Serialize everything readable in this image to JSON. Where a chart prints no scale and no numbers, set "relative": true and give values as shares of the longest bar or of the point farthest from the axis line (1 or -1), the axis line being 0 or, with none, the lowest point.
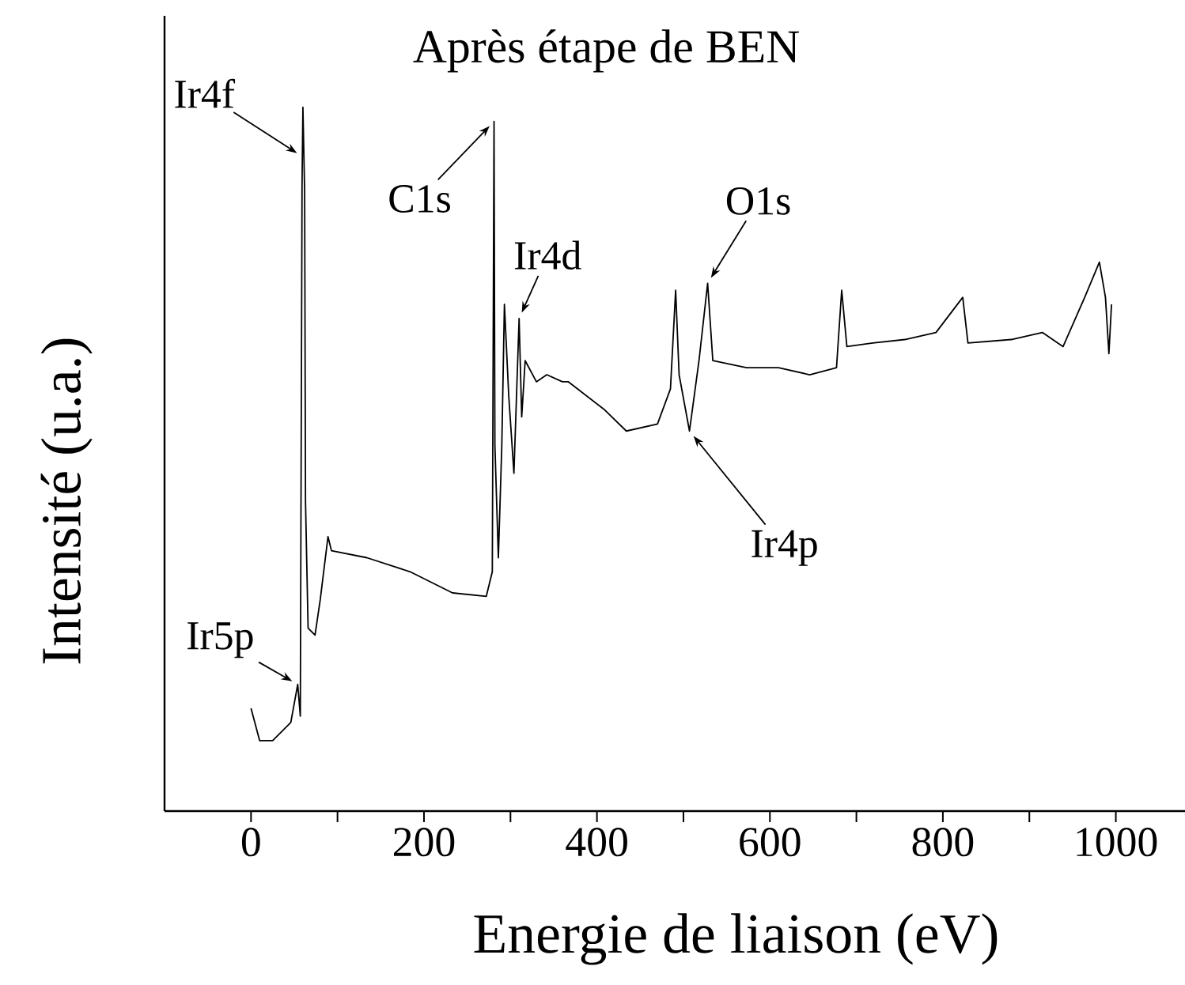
{
  "chart_data": {
    "type": "line",
    "title": "Après étape de BEN",
    "xlabel": "Energie de liaison (eV)",
    "ylabel": "Intensité (u.a.)",
    "relative": true,
    "color": "#000000",
    "xlim": [
      -100,
      1080
    ],
    "xticks": [
      0,
      {
        "value": 100,
        "label": null
      },
      200,
      {
        "value": 300,
        "label": null
      },
      400,
      {
        "value": 500,
        "label": null
      },
      600,
      {
        "value": 700,
        "label": null
      },
      800,
      {
        "value": 900,
        "label": null
      },
      1000
    ],
    "x": [
      0,
      10,
      25,
      46,
      54,
      57,
      59,
      60,
      62,
      63,
      66,
      74,
      80,
      89,
      93,
      134,
      184,
      233,
      272,
      279,
      281,
      282,
      286,
      290,
      293,
      298,
      304,
      310,
      313,
      317,
      330,
      342,
      360,
      367,
      409,
      434,
      470,
      485,
      491,
      495,
      507,
      518,
      528,
      534,
      573,
      610,
      646,
      677,
      683,
      689,
      719,
      756,
      792,
      823,
      829,
      879,
      915,
      939,
      964,
      981,
      988,
      992,
      995
    ],
    "values": [
      0.146,
      0.1,
      0.1,
      0.126,
      0.18,
      0.135,
      0.89,
      1.0,
      0.88,
      0.44,
      0.26,
      0.25,
      0.3,
      0.39,
      0.37,
      0.36,
      0.34,
      0.31,
      0.305,
      0.34,
      0.98,
      0.52,
      0.36,
      0.52,
      0.72,
      0.59,
      0.48,
      0.7,
      0.56,
      0.64,
      0.61,
      0.62,
      0.61,
      0.61,
      0.57,
      0.54,
      0.55,
      0.6,
      0.74,
      0.62,
      0.54,
      0.64,
      0.75,
      0.64,
      0.63,
      0.63,
      0.62,
      0.63,
      0.74,
      0.66,
      0.665,
      0.67,
      0.68,
      0.73,
      0.665,
      0.67,
      0.68,
      0.66,
      0.73,
      0.78,
      0.73,
      0.65,
      0.72
    ],
    "annotations": [
      {
        "text": "Ir4f",
        "x": 59.4,
        "y": 0.93
      },
      {
        "text": "C1s",
        "x": 281,
        "y": 0.98
      },
      {
        "text": "Ir4d",
        "x": 310,
        "y": 0.7
      },
      {
        "text": "O1s",
        "x": 528,
        "y": 0.75
      },
      {
        "text": "Ir4p",
        "x": 507,
        "y": 0.54
      },
      {
        "text": "Ir5p",
        "x": 54,
        "y": 0.18
      }
    ]
  }
}
